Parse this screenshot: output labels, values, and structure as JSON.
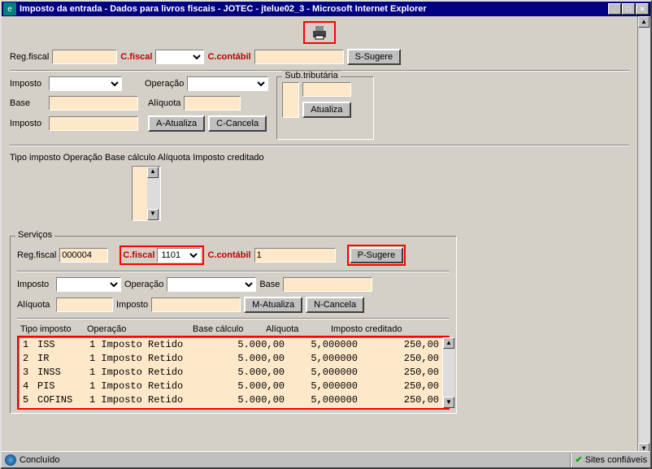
{
  "titlebar": {
    "text": "Imposto da entrada - Dados para livros fiscais - JOTEC - jtelue02_3 - Microsoft Internet Explorer"
  },
  "top": {
    "reg_fiscal_label": "Reg.fiscal",
    "c_fiscal_label": "C.fiscal",
    "c_contabil_label": "C.contábil",
    "s_sugere": "S-Sugere",
    "imposto_label": "Imposto",
    "operacao_label": "Operação",
    "base_label": "Base",
    "aliquota_label": "Alíquota",
    "a_atualiza": "A-Atualiza",
    "c_cancela": "C-Cancela",
    "sub_trib_label": "Sub.tributária",
    "atualiza": "Atualiza",
    "list_header": "Tipo imposto Operação Base cálculo Alíquota Imposto creditado"
  },
  "servicos": {
    "title": "Serviços",
    "reg_fiscal_label": "Reg.fiscal",
    "reg_fiscal_value": "000004",
    "c_fiscal_label": "C.fiscal",
    "c_fiscal_value": "1101",
    "c_contabil_label": "C.contábil",
    "c_contabil_value": "1",
    "p_sugere": "P-Sugere",
    "imposto_label": "Imposto",
    "operacao_label": "Operação",
    "base_label": "Base",
    "aliquota_label": "Alíquota",
    "m_atualiza": "M-Atualiza",
    "n_cancela": "N-Cancela",
    "hdr_tipo": "Tipo imposto",
    "hdr_op": "Operação",
    "hdr_bc": "Base cálculo",
    "hdr_al": "Alíquota",
    "hdr_ic": "Imposto creditado",
    "rows": [
      {
        "idx": "1",
        "ti": "ISS",
        "op": "1 Imposto Retido",
        "bc": "5.000,00",
        "al": "5,000000",
        "ic": "250,00"
      },
      {
        "idx": "2",
        "ti": "IR",
        "op": "1 Imposto Retido",
        "bc": "5.000,00",
        "al": "5,000000",
        "ic": "250,00"
      },
      {
        "idx": "3",
        "ti": "INSS",
        "op": "1 Imposto Retido",
        "bc": "5.000,00",
        "al": "5,000000",
        "ic": "250,00"
      },
      {
        "idx": "4",
        "ti": "PIS",
        "op": "1 Imposto Retido",
        "bc": "5.000,00",
        "al": "5,000000",
        "ic": "250,00"
      },
      {
        "idx": "5",
        "ti": "COFINS",
        "op": "1 Imposto Retido",
        "bc": "5.000,00",
        "al": "5,000000",
        "ic": "250,00"
      }
    ]
  },
  "status": {
    "done": "Concluído",
    "sites": "Sites confiáveis"
  },
  "colors": {
    "window_bg": "#d4d0c8",
    "titlebar_bg": "#000080",
    "input_bg": "#fde8c9",
    "highlight": "#ff0000",
    "label_red": "#c00000"
  }
}
